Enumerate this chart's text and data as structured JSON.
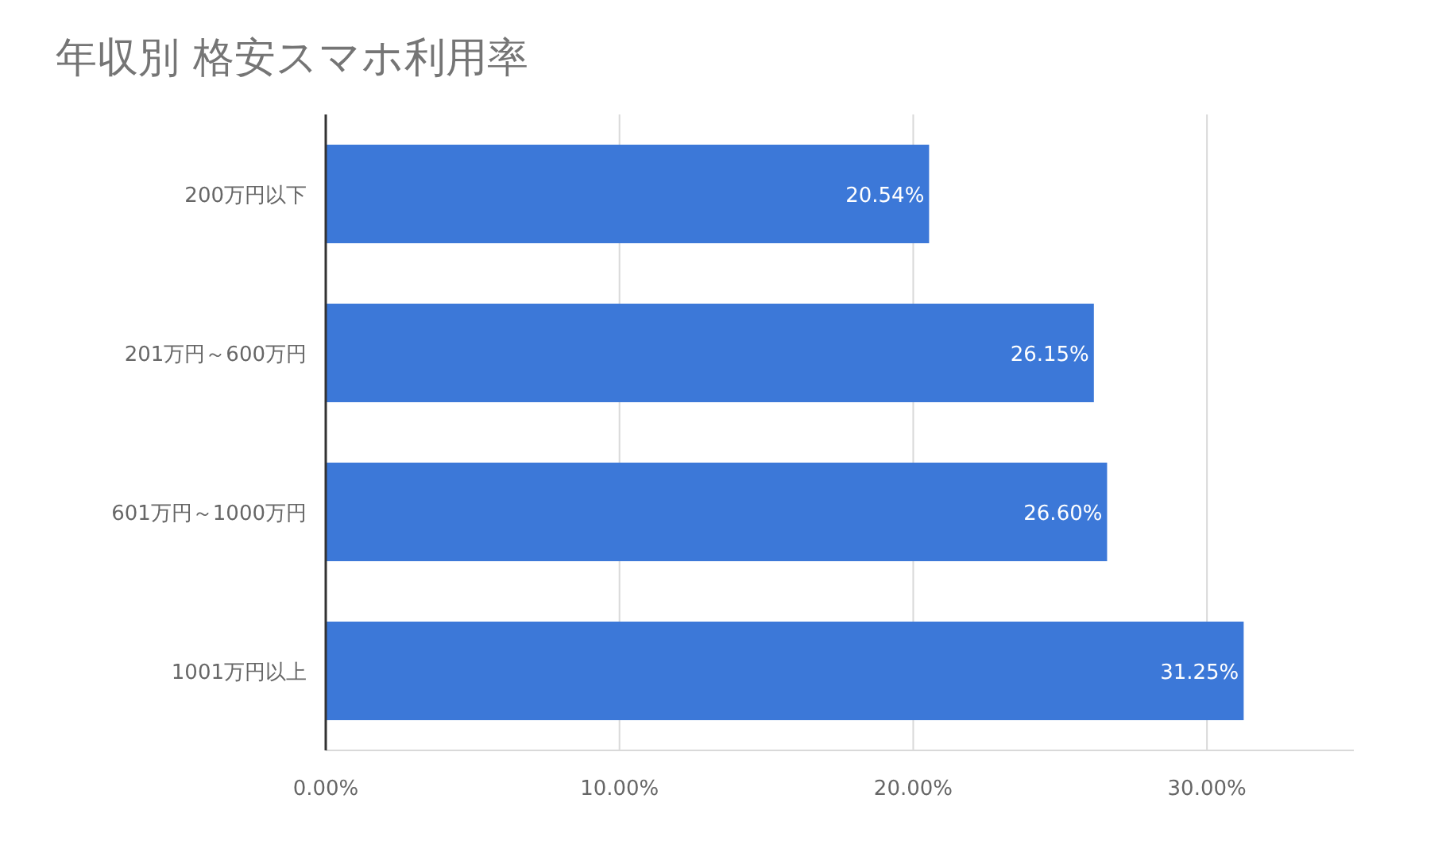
{
  "chart_data": {
    "type": "bar",
    "orientation": "horizontal",
    "title": "年収別 格安スマホ利用率",
    "categories": [
      "200万円以下",
      "201万円～600万円",
      "601万円～1000万円",
      "1001万円以上"
    ],
    "values": [
      20.54,
      26.15,
      26.6,
      31.25
    ],
    "value_labels": [
      "20.54%",
      "26.15%",
      "26.60%",
      "31.25%"
    ],
    "color": "#3c78d8",
    "xlim": [
      0,
      35
    ],
    "xticks": [
      {
        "value": 0,
        "label": "0.00%"
      },
      {
        "value": 10,
        "label": "10.00%"
      },
      {
        "value": 20,
        "label": "20.00%"
      },
      {
        "value": 30,
        "label": "30.00%"
      }
    ],
    "grid": "x"
  }
}
